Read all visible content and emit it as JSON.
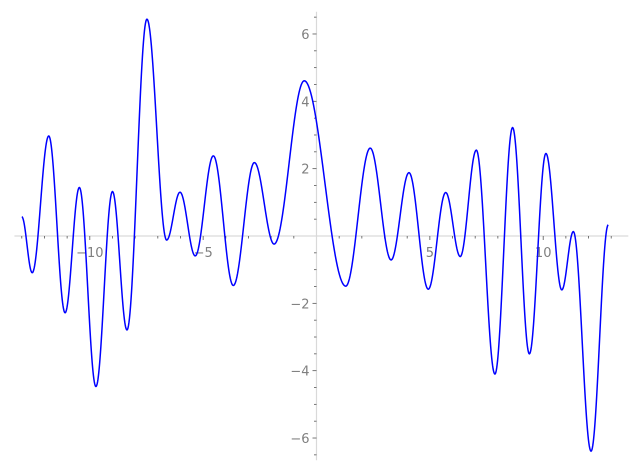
{
  "chart_data": {
    "type": "line",
    "title": "",
    "xlabel": "",
    "ylabel": "",
    "xlim": [
      -13.5,
      13.4
    ],
    "ylim": [
      -6.6,
      6.6
    ],
    "grid": false,
    "line_color": "#0000ff",
    "axis_color": "#d9d9d9",
    "tick_label_color": "#7f7f7f",
    "x_ticks": [
      {
        "value": -10,
        "label": "−10"
      },
      {
        "value": -5,
        "label": "−5"
      },
      {
        "value": 5,
        "label": "5"
      },
      {
        "value": 10,
        "label": "10"
      }
    ],
    "y_ticks": [
      {
        "value": 6,
        "label": "6"
      },
      {
        "value": 4,
        "label": "4"
      },
      {
        "value": 2,
        "label": "2"
      },
      {
        "value": -2,
        "label": "−2"
      },
      {
        "value": -4,
        "label": "−4"
      },
      {
        "value": -6,
        "label": "−6"
      }
    ],
    "series": [
      {
        "points": [
          [
            -13.0,
            0.57
          ],
          [
            -12.54,
            -1.09
          ],
          [
            -11.81,
            2.97
          ],
          [
            -11.09,
            -2.28
          ],
          [
            -10.46,
            1.44
          ],
          [
            -9.73,
            -4.47
          ],
          [
            -9.0,
            1.32
          ],
          [
            -8.36,
            -2.79
          ],
          [
            -7.48,
            6.44
          ],
          [
            -6.61,
            -0.12
          ],
          [
            -6.02,
            1.3
          ],
          [
            -5.35,
            -0.59
          ],
          [
            -4.55,
            2.38
          ],
          [
            -3.67,
            -1.47
          ],
          [
            -2.74,
            2.18
          ],
          [
            -1.87,
            -0.24
          ],
          [
            -0.54,
            4.61
          ],
          [
            1.29,
            -1.49
          ],
          [
            2.37,
            2.61
          ],
          [
            3.29,
            -0.71
          ],
          [
            4.08,
            1.88
          ],
          [
            4.93,
            -1.58
          ],
          [
            5.7,
            1.29
          ],
          [
            6.34,
            -0.61
          ],
          [
            7.05,
            2.55
          ],
          [
            7.87,
            -4.1
          ],
          [
            8.65,
            3.22
          ],
          [
            9.39,
            -3.5
          ],
          [
            10.12,
            2.45
          ],
          [
            10.82,
            -1.6
          ],
          [
            11.33,
            0.13
          ],
          [
            12.11,
            -6.39
          ],
          [
            12.87,
            0.33
          ]
        ]
      }
    ]
  }
}
